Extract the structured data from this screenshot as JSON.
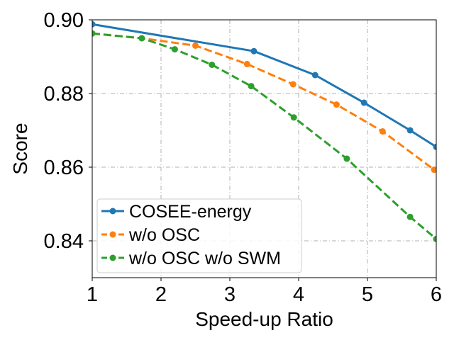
{
  "chart_data": {
    "type": "line",
    "title": "",
    "xlabel": "Speed-up Ratio",
    "ylabel": "Score",
    "xlim": [
      1,
      6
    ],
    "ylim": [
      0.83,
      0.9
    ],
    "xticks": [
      1,
      2,
      3,
      4,
      5,
      6
    ],
    "xtick_labels": [
      "1",
      "2",
      "3",
      "4",
      "5",
      "6"
    ],
    "yticks": [
      0.84,
      0.86,
      0.88,
      0.9
    ],
    "ytick_labels": [
      "0.84",
      "0.86",
      "0.88",
      "0.90"
    ],
    "grid": true,
    "legend_position": "lower-left",
    "series": [
      {
        "name": "COSEE-energy",
        "color": "#1f77b4",
        "dashed": false,
        "x": [
          1.0,
          3.35,
          4.24,
          4.95,
          5.62,
          6.0
        ],
        "y": [
          0.8988,
          0.8915,
          0.885,
          0.8775,
          0.87,
          0.8655
        ]
      },
      {
        "name": "w/o OSC",
        "color": "#ff7f0e",
        "dashed": true,
        "x": [
          1.0,
          1.72,
          2.5,
          3.25,
          3.92,
          4.55,
          5.22,
          5.97
        ],
        "y": [
          0.8963,
          0.895,
          0.893,
          0.888,
          0.8825,
          0.877,
          0.8697,
          0.8593
        ]
      },
      {
        "name": "w/o OSC w/o SWM",
        "color": "#2ca02c",
        "dashed": true,
        "x": [
          1.0,
          1.72,
          2.2,
          2.74,
          3.31,
          3.93,
          4.7,
          5.62,
          6.0
        ],
        "y": [
          0.8963,
          0.895,
          0.892,
          0.8878,
          0.882,
          0.8735,
          0.8623,
          0.8465,
          0.8405
        ]
      }
    ]
  }
}
